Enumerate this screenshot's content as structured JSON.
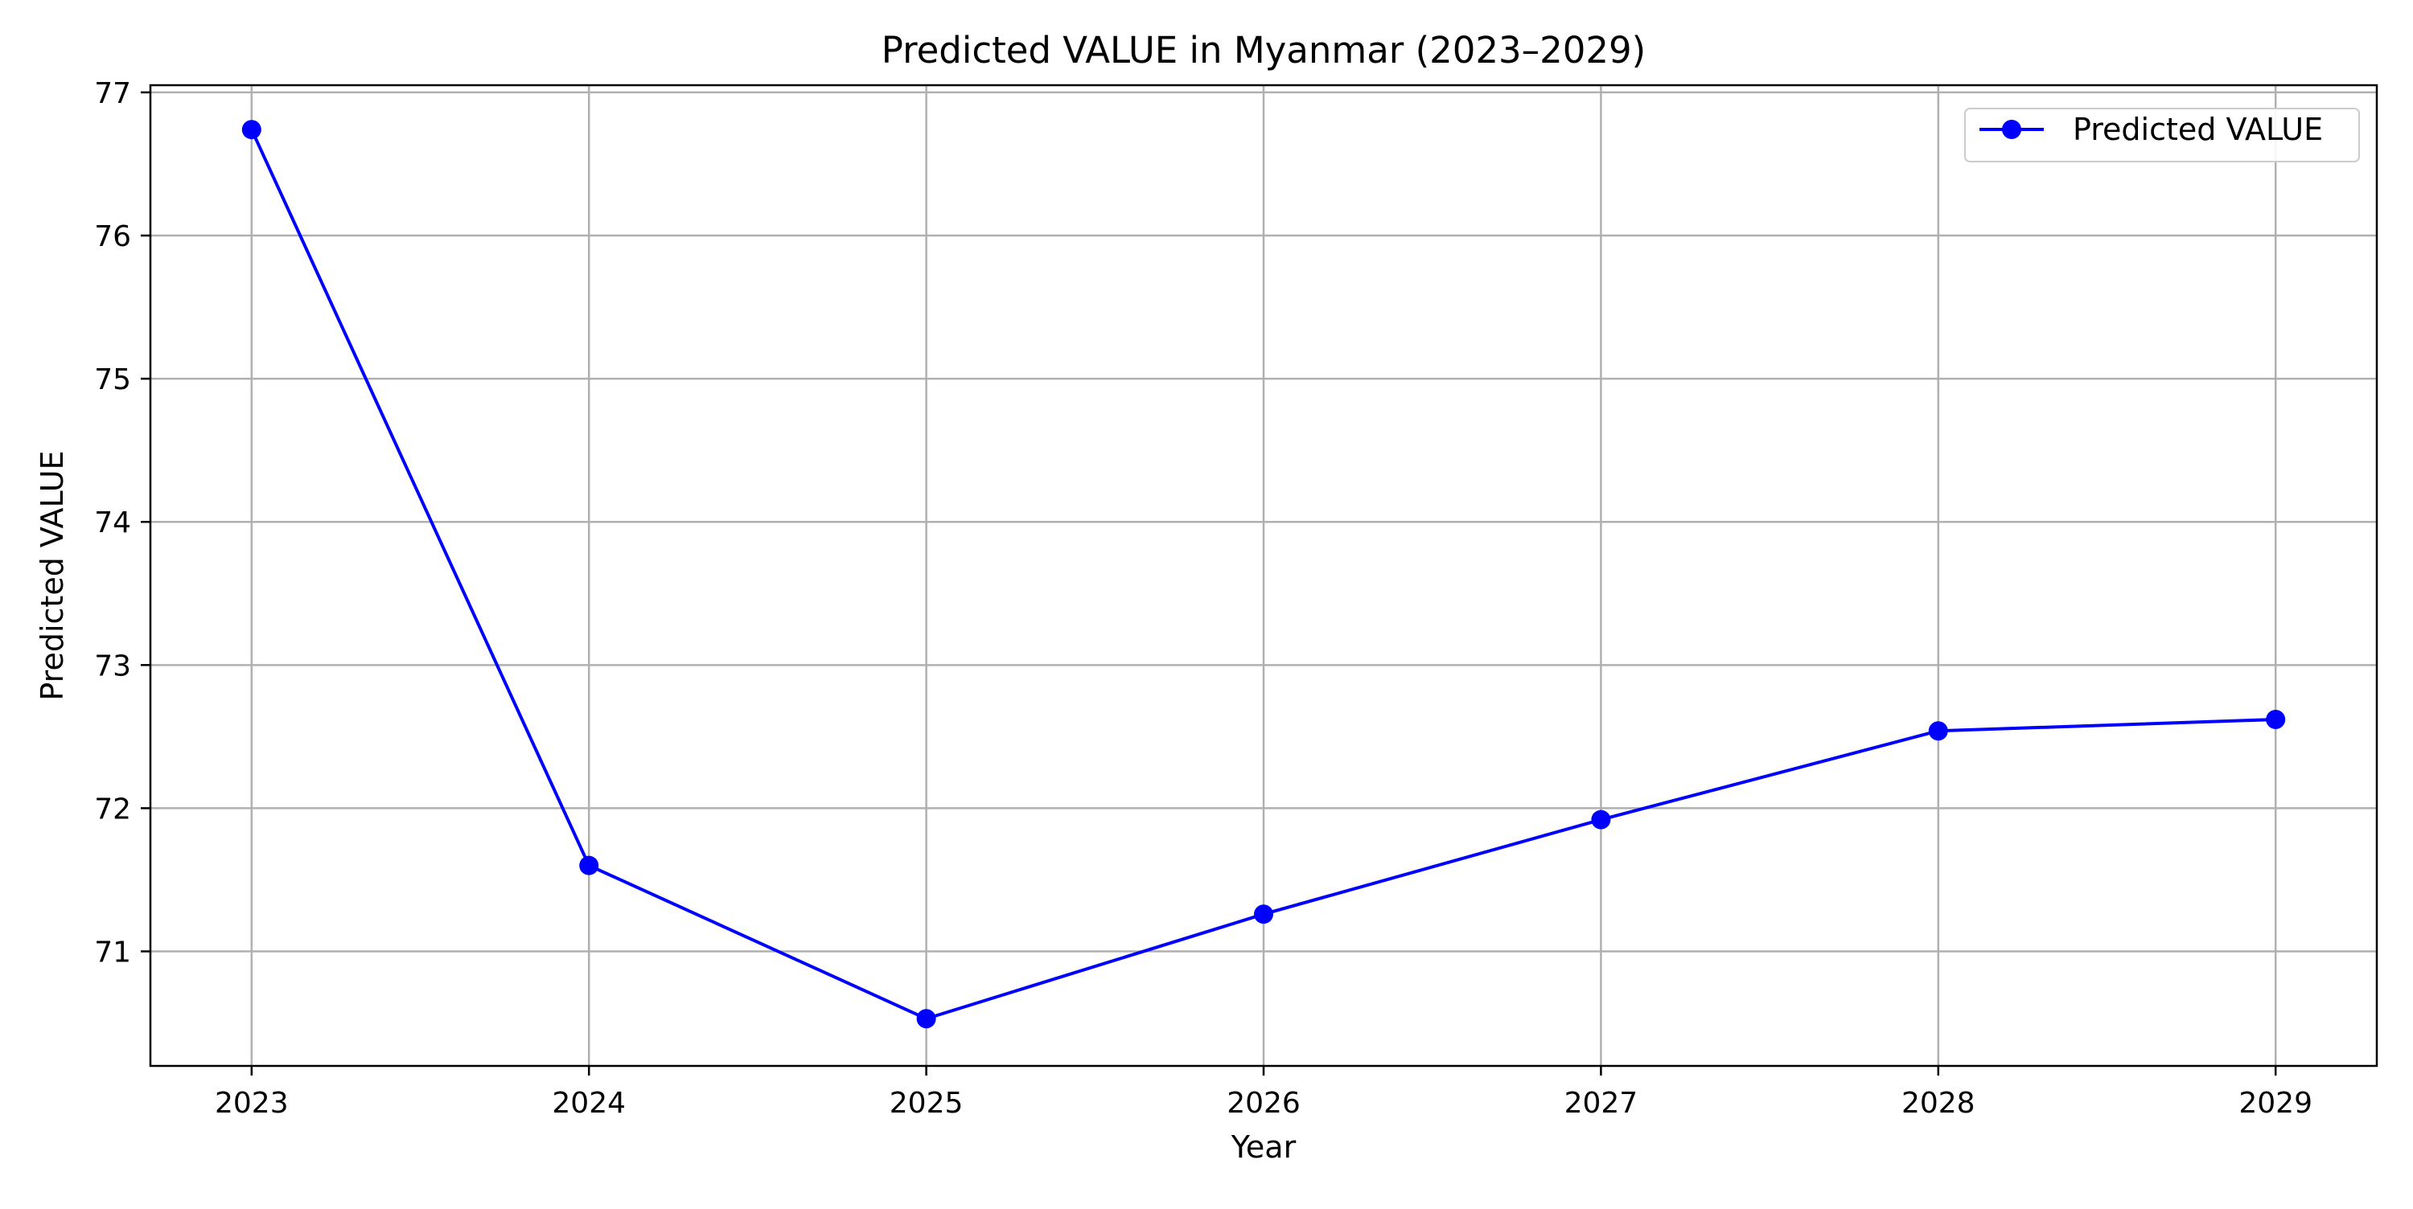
{
  "chart_data": {
    "type": "line",
    "title": "Predicted VALUE in Myanmar (2023–2029)",
    "xlabel": "Year",
    "ylabel": "Predicted VALUE",
    "x": [
      2023,
      2024,
      2025,
      2026,
      2027,
      2028,
      2029
    ],
    "x_tick_labels": [
      "2023",
      "2024",
      "2025",
      "2026",
      "2027",
      "2028",
      "2029"
    ],
    "y_ticks": [
      71,
      72,
      73,
      74,
      75,
      76,
      77
    ],
    "y_tick_labels": [
      "71",
      "72",
      "73",
      "74",
      "75",
      "76",
      "77"
    ],
    "xlim": [
      2022.7,
      2029.3
    ],
    "ylim": [
      70.2,
      77.05
    ],
    "grid": true,
    "legend_position": "upper-right",
    "series": [
      {
        "name": "Predicted VALUE",
        "color": "#0000ff",
        "marker": "circle",
        "values": [
          76.74,
          71.6,
          70.53,
          71.26,
          71.92,
          72.54,
          72.62
        ]
      }
    ]
  },
  "colors": {
    "grid": "#b0b0b0",
    "axes": "#000000",
    "background": "#ffffff"
  }
}
